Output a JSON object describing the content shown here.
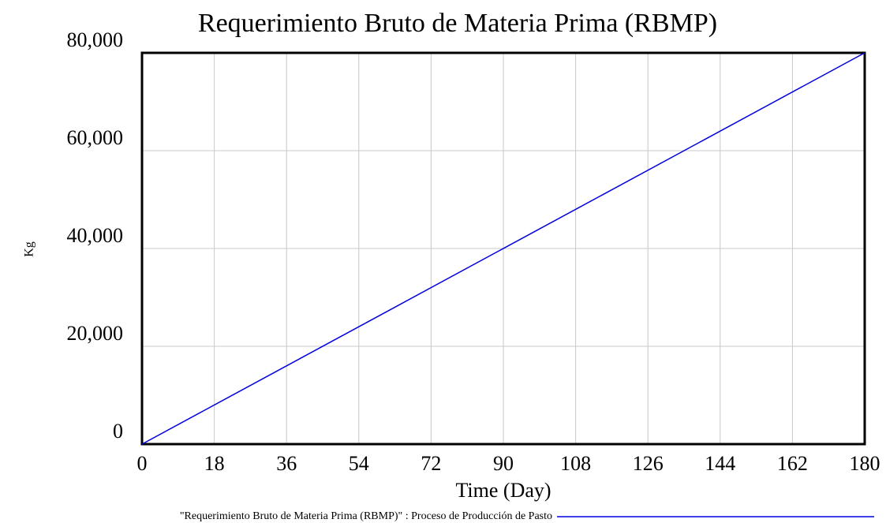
{
  "chart_data": {
    "type": "line",
    "title": "Requerimiento Bruto de Materia Prima (RBMP)",
    "x_label": "Time (Day)",
    "y_label": "Kg",
    "x": [
      0,
      180
    ],
    "series": [
      {
        "name": "\"Requerimiento Bruto de Materia Prima (RBMP)\" : Proceso de Producción de Pasto",
        "color": "#0000e0",
        "values": [
          0,
          80000
        ]
      }
    ],
    "xlim": [
      0,
      180
    ],
    "xticks": [
      0,
      18,
      36,
      54,
      72,
      90,
      108,
      126,
      144,
      162,
      180
    ],
    "ylim": [
      0,
      80000
    ],
    "yticks": [
      0,
      {
        "value": 20000,
        "label": "20,000"
      },
      {
        "value": 40000,
        "label": "40,000"
      },
      {
        "value": 60000,
        "label": "60,000"
      },
      {
        "value": 80000,
        "label": "80,000"
      }
    ],
    "grid": true
  }
}
